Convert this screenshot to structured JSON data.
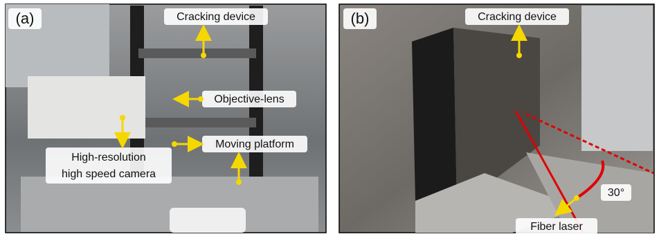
{
  "panels": [
    {
      "tag": "(a)",
      "labels": [
        "Cracking device",
        "Objective-lens",
        "Moving platform",
        "High-resolution",
        "high speed camera"
      ]
    },
    {
      "tag": "(b)",
      "labels": [
        "Cracking device",
        "30°",
        "Fiber laser"
      ]
    }
  ]
}
